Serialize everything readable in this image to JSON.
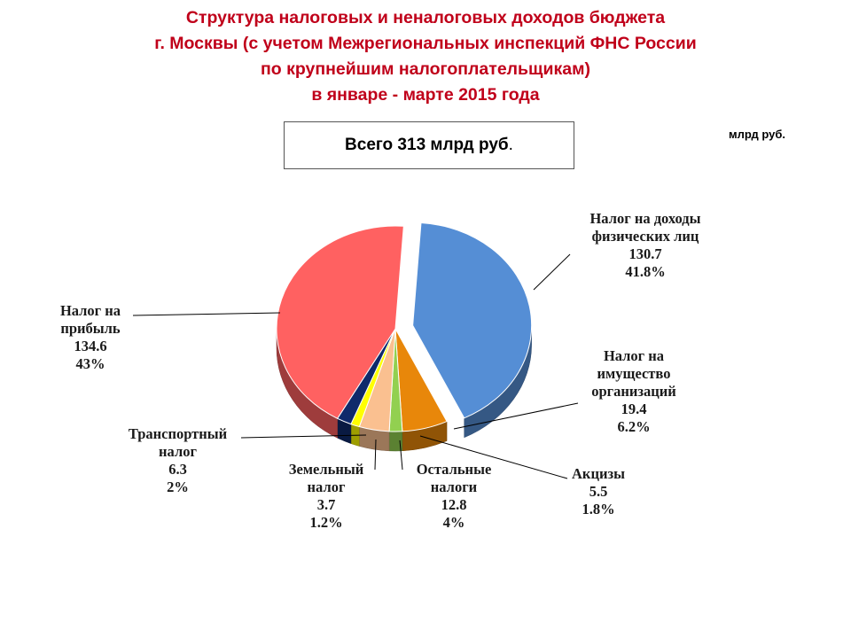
{
  "title": {
    "line1": "Структура налоговых и неналоговых доходов бюджета",
    "line2": "г. Москвы (с учетом Межрегиональных инспекций ФНС России",
    "line3": "по крупнейшим налогоплательщикам)",
    "line4": "в январе - марте 2015 года"
  },
  "total_box": {
    "text": "Всего 313 млрд руб",
    "suffix": "."
  },
  "unit": "млрд руб.",
  "chart_data": {
    "type": "pie",
    "three_d": true,
    "exploded_slice": "Налог на доходы физических лиц",
    "slices": [
      {
        "label_lines": [
          "Налог на доходы",
          "физических лиц"
        ],
        "value": 130.7,
        "percent": "41.8%",
        "color": "#558ed5"
      },
      {
        "label_lines": [
          "Налог на",
          "имущество",
          "организаций"
        ],
        "value": 19.4,
        "percent": "6.2%",
        "color": "#e8870a"
      },
      {
        "label_lines": [
          "Акцизы"
        ],
        "value": 5.5,
        "percent": "1.8%",
        "color": "#92d050"
      },
      {
        "label_lines": [
          "Остальные",
          "налоги"
        ],
        "value": 12.8,
        "percent": "4%",
        "color": "#fac090"
      },
      {
        "label_lines": [
          "Земельный",
          "налог"
        ],
        "value": 3.7,
        "percent": "1.2%",
        "color": "#ffff00"
      },
      {
        "label_lines": [
          "Транспортный",
          "налог"
        ],
        "value": 6.3,
        "percent": "2%",
        "color": "#0f2a6b"
      },
      {
        "label_lines": [
          "Налог на",
          "прибыль"
        ],
        "value": 134.6,
        "percent": "43%",
        "color": "#ff6161"
      }
    ]
  }
}
